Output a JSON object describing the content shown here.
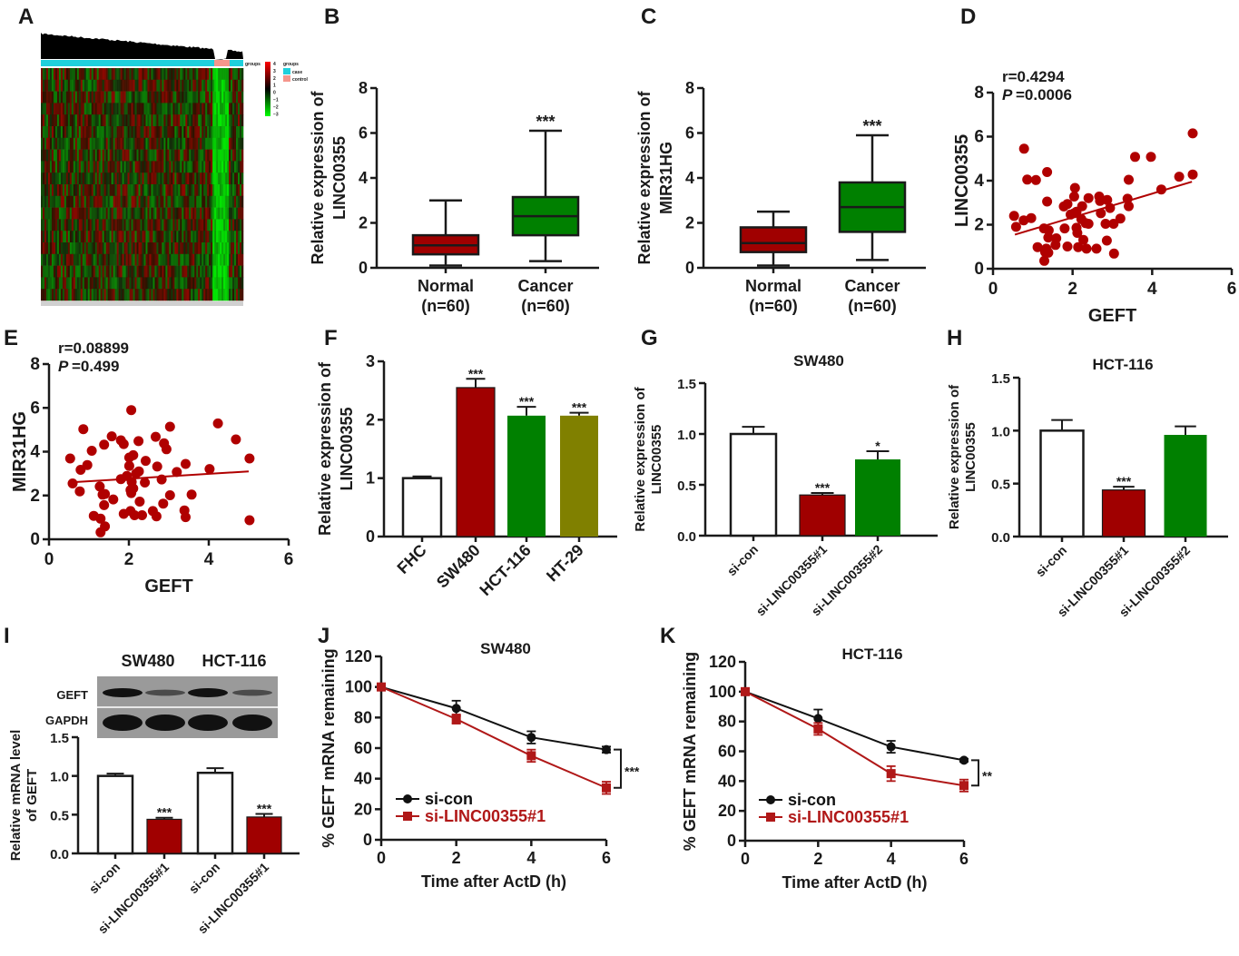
{
  "figure_labels": [
    "A",
    "B",
    "C",
    "D",
    "E",
    "F",
    "G",
    "H",
    "I",
    "J",
    "K"
  ],
  "chart_data": [
    {
      "id": "A",
      "type": "heatmap",
      "legend_title": "groups",
      "group_bar_label": "groups",
      "groups": [
        "case",
        "control"
      ],
      "group_colors": {
        "case": "#1fd0dc",
        "control": "#f5968c"
      },
      "scale_ticks": [
        "4",
        "3",
        "2",
        "1",
        "0",
        "−1",
        "−2",
        "−3"
      ],
      "scale_colors": [
        "#ff0000",
        "#000000",
        "#00ff00"
      ]
    },
    {
      "id": "B",
      "type": "box",
      "ylabel": [
        "Relative expression of",
        "LINC00355"
      ],
      "yticks": [
        "0",
        "2",
        "4",
        "6",
        "8"
      ],
      "ylim": [
        0,
        8
      ],
      "categories": [
        "Normal",
        "Cancer"
      ],
      "n_labels": [
        "(n=60)",
        "(n=60)"
      ],
      "boxes": [
        {
          "min": 0.1,
          "q1": 0.6,
          "median": 1.0,
          "q3": 1.45,
          "max": 3.0
        },
        {
          "min": 0.3,
          "q1": 1.45,
          "median": 2.3,
          "q3": 3.15,
          "max": 6.1
        }
      ],
      "colors": [
        "#a00000",
        "#008000"
      ],
      "significance": [
        "",
        "***"
      ]
    },
    {
      "id": "C",
      "type": "box",
      "ylabel": [
        "Relative expression of",
        "MIR31HG"
      ],
      "yticks": [
        "0",
        "2",
        "4",
        "6",
        "8"
      ],
      "ylim": [
        0,
        8
      ],
      "categories": [
        "Normal",
        "Cancer"
      ],
      "n_labels": [
        "(n=60)",
        "(n=60)"
      ],
      "boxes": [
        {
          "min": 0.1,
          "q1": 0.7,
          "median": 1.1,
          "q3": 1.8,
          "max": 2.5
        },
        {
          "min": 0.35,
          "q1": 1.6,
          "median": 2.7,
          "q3": 3.8,
          "max": 5.9
        }
      ],
      "colors": [
        "#a00000",
        "#008000"
      ],
      "significance": [
        "",
        "***"
      ]
    },
    {
      "id": "D",
      "type": "scatter",
      "xlabel": "GEFT",
      "ylabel": "LINC00355",
      "xticks": [
        "0",
        "2",
        "4",
        "6"
      ],
      "xlim": [
        0,
        6
      ],
      "yticks": [
        "0",
        "2",
        "4",
        "6",
        "8"
      ],
      "ylim": [
        0,
        8
      ],
      "r_text": "r=0.4294",
      "p_symbol": "P",
      "p_text": "=0.0006",
      "fit_line": [
        [
          0.55,
          1.55
        ],
        [
          5.0,
          3.95
        ]
      ],
      "color": "#b00000",
      "points": [
        [
          0.53,
          2.4
        ],
        [
          0.58,
          1.9
        ],
        [
          0.77,
          2.2
        ],
        [
          0.78,
          5.45
        ],
        [
          0.86,
          4.05
        ],
        [
          0.96,
          2.3
        ],
        [
          1.08,
          4.03
        ],
        [
          1.12,
          0.98
        ],
        [
          1.28,
          1.83
        ],
        [
          1.29,
          0.36
        ],
        [
          1.36,
          4.39
        ],
        [
          1.36,
          3.05
        ],
        [
          1.34,
          0.91
        ],
        [
          1.4,
          1.74
        ],
        [
          1.39,
          1.42
        ],
        [
          1.39,
          0.73
        ],
        [
          1.31,
          0.76
        ],
        [
          1.59,
          1.38
        ],
        [
          1.57,
          1.08
        ],
        [
          1.78,
          2.83
        ],
        [
          1.8,
          1.83
        ],
        [
          1.87,
          2.94
        ],
        [
          1.87,
          1.01
        ],
        [
          1.95,
          2.46
        ],
        [
          2.04,
          3.28
        ],
        [
          2.06,
          3.67
        ],
        [
          2.04,
          2.52
        ],
        [
          2.1,
          2.59
        ],
        [
          2.1,
          1.86
        ],
        [
          2.12,
          1.63
        ],
        [
          2.14,
          0.98
        ],
        [
          2.24,
          2.84
        ],
        [
          2.22,
          2.25
        ],
        [
          2.27,
          1.31
        ],
        [
          2.33,
          2.07
        ],
        [
          2.35,
          0.91
        ],
        [
          2.4,
          3.21
        ],
        [
          2.4,
          2.04
        ],
        [
          2.6,
          0.91
        ],
        [
          2.67,
          3.28
        ],
        [
          2.69,
          3.08
        ],
        [
          2.71,
          2.52
        ],
        [
          2.83,
          2.04
        ],
        [
          2.86,
          1.28
        ],
        [
          2.87,
          3.12
        ],
        [
          2.94,
          2.76
        ],
        [
          3.03,
          2.04
        ],
        [
          3.04,
          0.69
        ],
        [
          3.2,
          2.28
        ],
        [
          3.38,
          3.18
        ],
        [
          3.41,
          2.84
        ],
        [
          3.41,
          4.04
        ],
        [
          3.57,
          5.08
        ],
        [
          3.97,
          5.08
        ],
        [
          4.23,
          3.6
        ],
        [
          4.68,
          4.18
        ],
        [
          5.02,
          4.28
        ],
        [
          5.02,
          6.15
        ]
      ]
    },
    {
      "id": "E",
      "type": "scatter",
      "xlabel": "GEFT",
      "ylabel": "MIR31HG",
      "xticks": [
        "0",
        "2",
        "4",
        "6"
      ],
      "xlim": [
        0,
        6
      ],
      "yticks": [
        "0",
        "2",
        "4",
        "6",
        "8"
      ],
      "ylim": [
        0,
        8
      ],
      "r_text": "r=0.08899",
      "p_symbol": "P",
      "p_text": "=0.499",
      "fit_line": [
        [
          0.55,
          2.6
        ],
        [
          5.0,
          3.1
        ]
      ],
      "color": "#b00000",
      "points": [
        [
          0.53,
          3.69
        ],
        [
          0.59,
          2.55
        ],
        [
          0.77,
          2.19
        ],
        [
          0.79,
          3.17
        ],
        [
          0.86,
          5.03
        ],
        [
          0.96,
          3.39
        ],
        [
          1.07,
          4.04
        ],
        [
          1.12,
          1.07
        ],
        [
          1.27,
          2.41
        ],
        [
          1.29,
          0.94
        ],
        [
          1.29,
          0.32
        ],
        [
          1.38,
          4.32
        ],
        [
          1.34,
          2.04
        ],
        [
          1.4,
          2.07
        ],
        [
          1.38,
          1.56
        ],
        [
          1.4,
          0.59
        ],
        [
          1.57,
          4.7
        ],
        [
          1.61,
          1.82
        ],
        [
          1.8,
          4.52
        ],
        [
          1.87,
          4.35
        ],
        [
          1.8,
          2.75
        ],
        [
          1.87,
          1.16
        ],
        [
          1.95,
          2.89
        ],
        [
          2.01,
          3.73
        ],
        [
          2.01,
          3.35
        ],
        [
          2.06,
          5.9
        ],
        [
          2.07,
          2.62
        ],
        [
          2.04,
          2.25
        ],
        [
          2.06,
          2.11
        ],
        [
          2.04,
          1.29
        ],
        [
          2.11,
          3.84
        ],
        [
          2.11,
          2.32
        ],
        [
          2.14,
          1.1
        ],
        [
          2.18,
          3.0
        ],
        [
          2.24,
          4.48
        ],
        [
          2.25,
          3.1
        ],
        [
          2.27,
          1.72
        ],
        [
          2.33,
          1.1
        ],
        [
          2.4,
          2.59
        ],
        [
          2.42,
          3.58
        ],
        [
          2.6,
          1.29
        ],
        [
          2.67,
          4.68
        ],
        [
          2.69,
          1.05
        ],
        [
          2.71,
          3.32
        ],
        [
          2.82,
          2.73
        ],
        [
          2.86,
          1.63
        ],
        [
          2.88,
          4.38
        ],
        [
          2.94,
          4.11
        ],
        [
          3.03,
          5.14
        ],
        [
          3.03,
          2.01
        ],
        [
          3.2,
          3.07
        ],
        [
          3.39,
          1.32
        ],
        [
          3.42,
          3.44
        ],
        [
          3.42,
          1.01
        ],
        [
          3.57,
          2.04
        ],
        [
          4.02,
          3.21
        ],
        [
          4.23,
          5.29
        ],
        [
          4.68,
          4.56
        ],
        [
          5.02,
          3.69
        ],
        [
          5.02,
          0.87
        ]
      ]
    },
    {
      "id": "F",
      "type": "bar",
      "ylabel": [
        "Relative expression of",
        "LINC00355"
      ],
      "yticks": [
        "0",
        "1",
        "2",
        "3"
      ],
      "ylim": [
        0,
        3
      ],
      "categories": [
        "FHC",
        "SW480",
        "HCT-116",
        "HT-29"
      ],
      "values": [
        1.0,
        2.55,
        2.07,
        2.07
      ],
      "errors": [
        0.03,
        0.15,
        0.15,
        0.05
      ],
      "colors": [
        "#ffffff",
        "#a00000",
        "#008000",
        "#808000"
      ],
      "significance": [
        "",
        "***",
        "***",
        "***"
      ]
    },
    {
      "id": "G",
      "type": "bar",
      "title": "SW480",
      "ylabel": [
        "Relative expression of",
        "LINC00355"
      ],
      "yticks": [
        "0.0",
        "0.5",
        "1.0",
        "1.5"
      ],
      "ylim": [
        0,
        1.5
      ],
      "categories": [
        "si-con",
        "si-LINC00355#1",
        "si-LINC00355#2"
      ],
      "values": [
        1.0,
        0.4,
        0.75
      ],
      "errors": [
        0.07,
        0.02,
        0.08
      ],
      "colors": [
        "#ffffff",
        "#a00000",
        "#008000"
      ],
      "significance": [
        "",
        "***",
        "*"
      ]
    },
    {
      "id": "H",
      "type": "bar",
      "title": "HCT-116",
      "ylabel": [
        "Relative expression of",
        "LINC00355"
      ],
      "yticks": [
        "0.0",
        "0.5",
        "1.0",
        "1.5"
      ],
      "ylim": [
        0,
        1.5
      ],
      "categories": [
        "si-con",
        "si-LINC00355#1",
        "si-LINC00355#2"
      ],
      "values": [
        1.0,
        0.44,
        0.96
      ],
      "errors": [
        0.1,
        0.03,
        0.08
      ],
      "colors": [
        "#ffffff",
        "#a00000",
        "#008000"
      ],
      "significance": [
        "",
        "***",
        ""
      ]
    },
    {
      "id": "I",
      "type": "bar",
      "blot": {
        "cell_lines": [
          "SW480",
          "HCT-116"
        ],
        "rows": [
          "GEFT",
          "GAPDH"
        ],
        "band_intensity": {
          "GEFT": [
            1.0,
            0.35,
            1.0,
            0.35
          ],
          "GAPDH": [
            1.0,
            1.0,
            1.0,
            1.0
          ]
        }
      },
      "ylabel": [
        "Relative mRNA level",
        "of GEFT"
      ],
      "yticks": [
        "0.0",
        "0.5",
        "1.0",
        "1.5"
      ],
      "ylim": [
        0,
        1.5
      ],
      "categories": [
        "si-con",
        "si-LINC00355#1",
        "si-con",
        "si-LINC00355#1"
      ],
      "values": [
        1.0,
        0.44,
        1.04,
        0.47
      ],
      "errors": [
        0.03,
        0.02,
        0.06,
        0.04
      ],
      "colors": [
        "#ffffff",
        "#a00000",
        "#ffffff",
        "#a00000"
      ],
      "significance": [
        "",
        "***",
        "",
        "***"
      ]
    },
    {
      "id": "J",
      "type": "line",
      "title": "SW480",
      "xlabel": "Time after ActD (h)",
      "ylabel": "% GEFT mRNA remaining",
      "x": [
        0,
        2,
        4,
        6
      ],
      "xticks": [
        "0",
        "2",
        "4",
        "6"
      ],
      "xlim": [
        0,
        6
      ],
      "yticks": [
        "0",
        "20",
        "40",
        "60",
        "80",
        "100",
        "120"
      ],
      "ylim": [
        0,
        120
      ],
      "series": [
        {
          "name": "si-con",
          "values": [
            100,
            86,
            67,
            59
          ],
          "errors": [
            1,
            5,
            4,
            2
          ],
          "color": "#111111",
          "marker": "circle"
        },
        {
          "name": "si-LINC00355#1",
          "values": [
            100,
            79,
            55,
            34
          ],
          "errors": [
            1,
            3,
            4,
            4
          ],
          "color": "#b01818",
          "marker": "square"
        }
      ],
      "significance": "***"
    },
    {
      "id": "K",
      "type": "line",
      "title": "HCT-116",
      "xlabel": "Time after ActD (h)",
      "ylabel": "% GEFT mRNA remaining",
      "x": [
        0,
        2,
        4,
        6
      ],
      "xticks": [
        "0",
        "2",
        "4",
        "6"
      ],
      "xlim": [
        0,
        6
      ],
      "yticks": [
        "0",
        "20",
        "40",
        "60",
        "80",
        "100",
        "120"
      ],
      "ylim": [
        0,
        120
      ],
      "series": [
        {
          "name": "si-con",
          "values": [
            100,
            82,
            63,
            54
          ],
          "errors": [
            1,
            6,
            4,
            1
          ],
          "color": "#111111",
          "marker": "circle"
        },
        {
          "name": "si-LINC00355#1",
          "values": [
            100,
            75,
            45,
            37
          ],
          "errors": [
            1,
            4,
            5,
            4
          ],
          "color": "#b01818",
          "marker": "square"
        }
      ],
      "significance": "**"
    }
  ]
}
